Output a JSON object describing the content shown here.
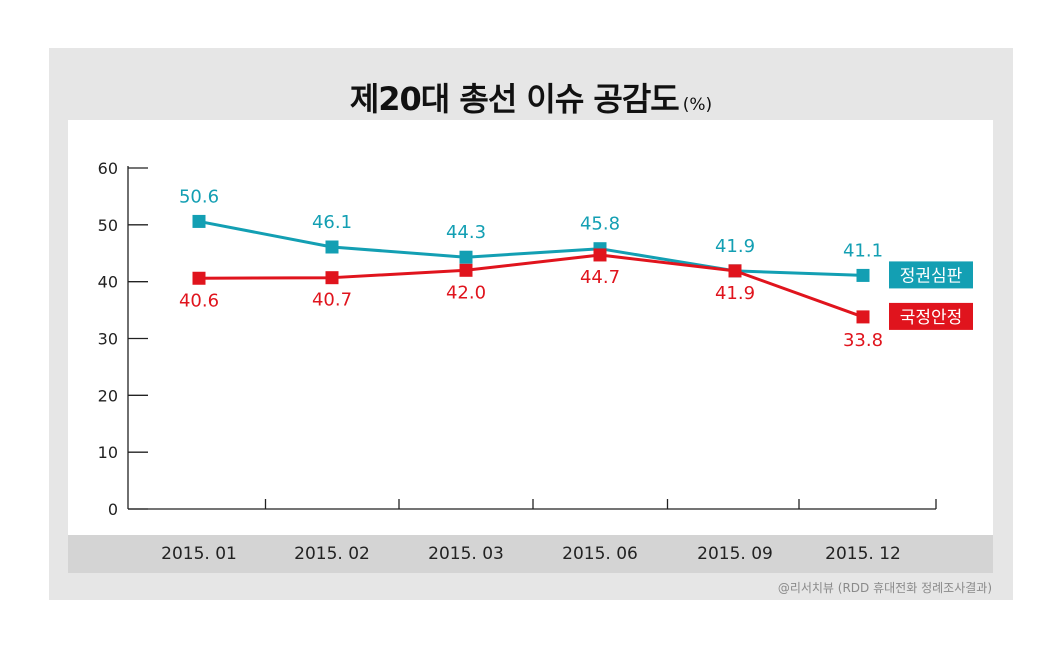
{
  "title": "제20대 총선 이슈 공감도",
  "title_unit": "(%)",
  "source": "@리서치뷰 (RDD 휴대전화 정례조사결과)",
  "chart_data": {
    "type": "line",
    "title": "제20대 총선 이슈 공감도 (%)",
    "categories": [
      "2015. 01",
      "2015. 02",
      "2015. 03",
      "2015. 06",
      "2015. 09",
      "2015. 12"
    ],
    "ylim": [
      0,
      60
    ],
    "yticks": [
      "0",
      "10",
      "20",
      "30",
      "40",
      "50",
      "60"
    ],
    "grid": false,
    "legend": "inline-right",
    "series": [
      {
        "name": "정권심판",
        "color": "#139fb3",
        "values": [
          50.6,
          46.1,
          44.3,
          45.8,
          41.9,
          41.1
        ],
        "labels": [
          "50.6",
          "46.1",
          "44.3",
          "45.8",
          "41.9",
          "41.1"
        ]
      },
      {
        "name": "국정안정",
        "color": "#e0141d",
        "values": [
          40.6,
          40.7,
          42.0,
          44.7,
          41.9,
          33.8
        ],
        "labels": [
          "40.6",
          "40.7",
          "42.0",
          "44.7",
          "41.9",
          "33.8"
        ]
      }
    ]
  }
}
